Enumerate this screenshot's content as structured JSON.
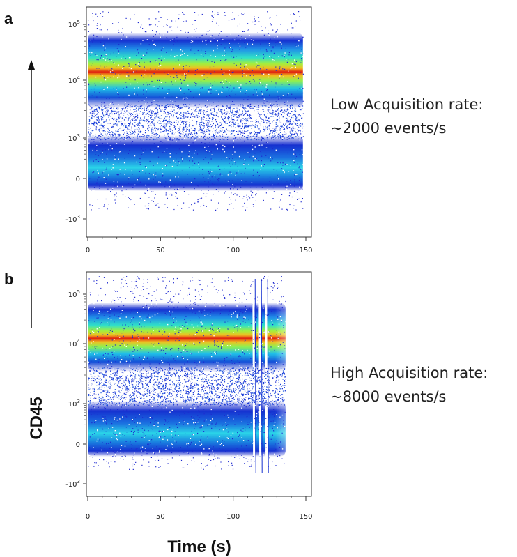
{
  "figure": {
    "ylabel": "CD45",
    "xlabel": "Time (s)"
  },
  "chart_data": [
    {
      "type": "scatter",
      "panel": "a",
      "title": "",
      "xlabel": "Time (s)",
      "ylabel": "CD45",
      "xlim": [
        0,
        150
      ],
      "x_ticks": [
        "0",
        "50",
        "100",
        "150"
      ],
      "y_scale": "biexponential",
      "y_ticks": [
        {
          "base": "10",
          "exp": "5"
        },
        {
          "base": "10",
          "exp": "4"
        },
        {
          "base": "10",
          "exp": "3"
        },
        {
          "base": "0",
          "exp": ""
        },
        {
          "base": "-10",
          "exp": "3"
        }
      ],
      "acquisition_end_s": 148,
      "populations": [
        {
          "center": 20000,
          "density": "high",
          "color_peak": "#e02010"
        },
        {
          "center": 0,
          "density": "medium",
          "color_peak": "#2ad4e8"
        }
      ],
      "annotation": [
        "Low Acquisition rate:",
        "~2000 events/s"
      ]
    },
    {
      "type": "scatter",
      "panel": "b",
      "title": "",
      "xlabel": "Time (s)",
      "ylabel": "CD45",
      "xlim": [
        0,
        150
      ],
      "x_ticks": [
        "0",
        "50",
        "100",
        "150"
      ],
      "y_scale": "biexponential",
      "y_ticks": [
        {
          "base": "10",
          "exp": "5"
        },
        {
          "base": "10",
          "exp": "4"
        },
        {
          "base": "10",
          "exp": "3"
        },
        {
          "base": "0",
          "exp": ""
        },
        {
          "base": "-10",
          "exp": "3"
        }
      ],
      "acquisition_end_s": 136,
      "disturbance_start_s": 112,
      "populations": [
        {
          "center": 20000,
          "density": "high",
          "color_peak": "#e02010"
        },
        {
          "center": 0,
          "density": "medium",
          "color_peak": "#2ad4e8"
        }
      ],
      "annotation": [
        "High Acquisition rate:",
        "~8000 events/s"
      ]
    }
  ]
}
